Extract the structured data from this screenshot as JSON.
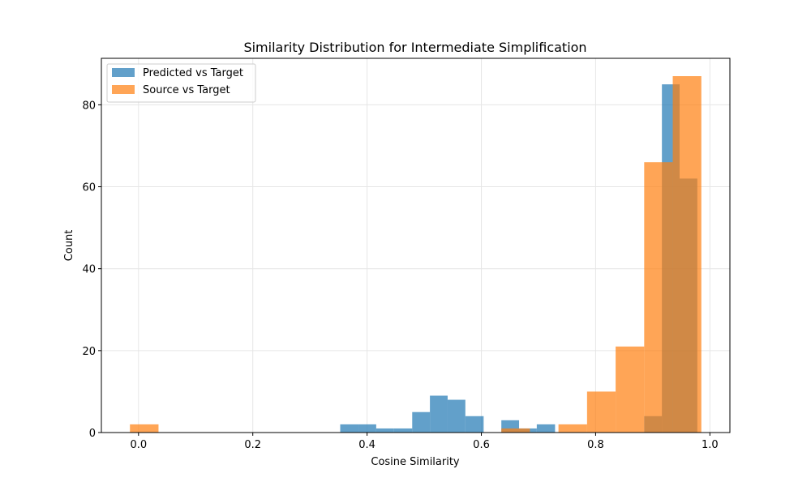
{
  "chart_data": {
    "type": "histogram",
    "title": "Similarity Distribution for Intermediate Simplification",
    "xlabel": "Cosine Similarity",
    "ylabel": "Count",
    "xlim": [
      -0.065,
      1.035
    ],
    "ylim": [
      0,
      91.35
    ],
    "xticks": [
      0.0,
      0.2,
      0.4,
      0.6,
      0.8,
      1.0
    ],
    "xtick_labels": [
      "0.0",
      "0.2",
      "0.4",
      "0.6",
      "0.8",
      "1.0"
    ],
    "yticks": [
      0,
      20,
      40,
      60,
      80
    ],
    "ytick_labels": [
      "0",
      "20",
      "40",
      "60",
      "80"
    ],
    "grid": true,
    "legend_position": "upper-left",
    "series": [
      {
        "name": "Predicted vs Target",
        "color": "#1f77b4",
        "opacity": 0.7,
        "bins": [
          {
            "x0": 0.353,
            "x1": 0.385,
            "count": 2
          },
          {
            "x0": 0.385,
            "x1": 0.416,
            "count": 2
          },
          {
            "x0": 0.416,
            "x1": 0.447,
            "count": 1
          },
          {
            "x0": 0.447,
            "x1": 0.479,
            "count": 1
          },
          {
            "x0": 0.479,
            "x1": 0.51,
            "count": 5
          },
          {
            "x0": 0.51,
            "x1": 0.541,
            "count": 9
          },
          {
            "x0": 0.541,
            "x1": 0.572,
            "count": 8
          },
          {
            "x0": 0.572,
            "x1": 0.604,
            "count": 4
          },
          {
            "x0": 0.635,
            "x1": 0.666,
            "count": 3
          },
          {
            "x0": 0.666,
            "x1": 0.697,
            "count": 1
          },
          {
            "x0": 0.697,
            "x1": 0.729,
            "count": 2
          },
          {
            "x0": 0.885,
            "x1": 0.916,
            "count": 4
          },
          {
            "x0": 0.916,
            "x1": 0.947,
            "count": 85
          },
          {
            "x0": 0.947,
            "x1": 0.978,
            "count": 62
          }
        ]
      },
      {
        "name": "Source vs Target",
        "color": "#ff7f0e",
        "opacity": 0.7,
        "bins": [
          {
            "x0": -0.015,
            "x1": 0.035,
            "count": 2
          },
          {
            "x0": 0.635,
            "x1": 0.685,
            "count": 1
          },
          {
            "x0": 0.735,
            "x1": 0.785,
            "count": 2
          },
          {
            "x0": 0.785,
            "x1": 0.835,
            "count": 10
          },
          {
            "x0": 0.835,
            "x1": 0.885,
            "count": 21
          },
          {
            "x0": 0.885,
            "x1": 0.935,
            "count": 66
          },
          {
            "x0": 0.935,
            "x1": 0.985,
            "count": 87
          }
        ]
      }
    ]
  }
}
